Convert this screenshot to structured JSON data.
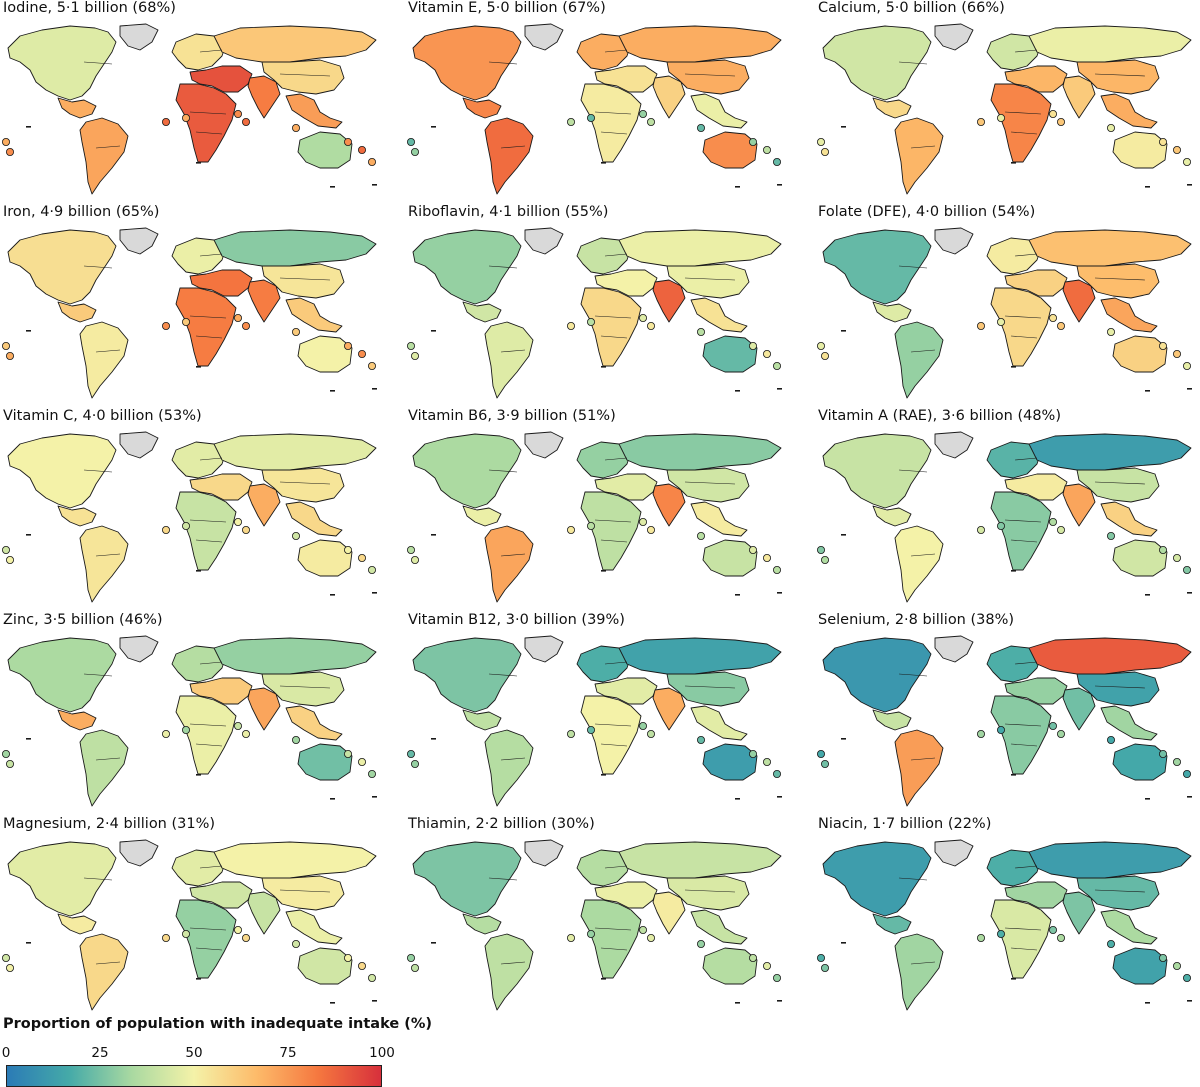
{
  "panels": [
    {
      "title": "Iodine, 5·1 billion (68%)",
      "regions": {
        "na": 45,
        "greenland": null,
        "ca": 70,
        "sa": 72,
        "eu": 55,
        "russia": 63,
        "ma": 92,
        "af": 90,
        "sas": 82,
        "eas": 58,
        "sea": 74,
        "oc": 35,
        "islands": 78
      }
    },
    {
      "title": "Vitamin E, 5·0 billion (67%)",
      "regions": {
        "na": 76,
        "greenland": null,
        "ca": 80,
        "sa": 86,
        "eu": 70,
        "russia": 70,
        "ma": 55,
        "af": 52,
        "sas": 60,
        "eas": 70,
        "sea": 48,
        "oc": 78,
        "islands": 30
      }
    },
    {
      "title": "Calcium, 5·0 billion (66%)",
      "regions": {
        "na": 42,
        "greenland": null,
        "ca": 58,
        "sa": 68,
        "eu": 42,
        "russia": 48,
        "ma": 68,
        "af": 80,
        "sas": 62,
        "eas": 68,
        "sea": 70,
        "oc": 52,
        "islands": 55
      }
    },
    {
      "title": "Iron, 4·9 billion (65%)",
      "regions": {
        "na": 56,
        "greenland": null,
        "ca": 62,
        "sa": 52,
        "eu": 48,
        "russia": 28,
        "ma": 84,
        "af": 82,
        "sas": 82,
        "eas": 54,
        "sea": 62,
        "oc": 50,
        "islands": 70
      }
    },
    {
      "title": "Riboflavin, 4·1 billion (55%)",
      "regions": {
        "na": 30,
        "greenland": null,
        "ca": 42,
        "sa": 45,
        "eu": 40,
        "russia": 48,
        "ma": 50,
        "af": 58,
        "sas": 88,
        "eas": 48,
        "sea": 55,
        "oc": 22,
        "islands": 45
      }
    },
    {
      "title": "Folate (DFE), 4·0 billion (54%)",
      "regions": {
        "na": 22,
        "greenland": null,
        "ca": 45,
        "sa": 30,
        "eu": 52,
        "russia": 65,
        "ma": 60,
        "af": 58,
        "sas": 86,
        "eas": 66,
        "sea": 72,
        "oc": 60,
        "islands": 55
      }
    },
    {
      "title": "Vitamin C, 4·0 billion (53%)",
      "regions": {
        "na": 50,
        "greenland": null,
        "ca": 55,
        "sa": 54,
        "eu": 46,
        "russia": 46,
        "ma": 58,
        "af": 40,
        "sas": 70,
        "eas": 54,
        "sea": 58,
        "oc": 52,
        "islands": 50
      }
    },
    {
      "title": "Vitamin B6, 3·9 billion (51%)",
      "regions": {
        "na": 34,
        "greenland": null,
        "ca": 48,
        "sa": 72,
        "eu": 30,
        "russia": 28,
        "ma": 46,
        "af": 38,
        "sas": 80,
        "eas": 42,
        "sea": 52,
        "oc": 40,
        "islands": 45
      }
    },
    {
      "title": "Vitamin A (RAE), 3·6 billion (48%)",
      "regions": {
        "na": 40,
        "greenland": null,
        "ca": 46,
        "sa": 50,
        "eu": 20,
        "russia": 12,
        "ma": 52,
        "af": 28,
        "sas": 72,
        "eas": 40,
        "sea": 60,
        "oc": 42,
        "islands": 35
      }
    },
    {
      "title": "Zinc, 3·5 billion (46%)",
      "regions": {
        "na": 34,
        "greenland": null,
        "ca": 70,
        "sa": 38,
        "eu": 36,
        "russia": 30,
        "ma": 62,
        "af": 48,
        "sas": 72,
        "eas": 44,
        "sea": 60,
        "oc": 24,
        "islands": 40
      }
    },
    {
      "title": "Vitamin B12, 3·0 billion (39%)",
      "regions": {
        "na": 26,
        "greenland": null,
        "ca": 38,
        "sa": 36,
        "eu": 18,
        "russia": 14,
        "ma": 46,
        "af": 50,
        "sas": 70,
        "eas": 28,
        "sea": 46,
        "oc": 12,
        "islands": 30
      }
    },
    {
      "title": "Selenium, 2·8 billion (38%)",
      "regions": {
        "na": 10,
        "greenland": null,
        "ca": 40,
        "sa": 74,
        "eu": 18,
        "russia": 90,
        "ma": 30,
        "af": 28,
        "sas": 24,
        "eas": 14,
        "sea": 32,
        "oc": 16,
        "islands": 24
      }
    },
    {
      "title": "Magnesium, 2·4 billion (31%)",
      "regions": {
        "na": 46,
        "greenland": null,
        "ca": 52,
        "sa": 58,
        "eu": 46,
        "russia": 50,
        "ma": 42,
        "af": 30,
        "sas": 40,
        "eas": 52,
        "sea": 48,
        "oc": 42,
        "islands": 50
      }
    },
    {
      "title": "Thiamin, 2·2 billion (30%)",
      "regions": {
        "na": 26,
        "greenland": null,
        "ca": 36,
        "sa": 38,
        "eu": 36,
        "russia": 40,
        "ma": 48,
        "af": 34,
        "sas": 52,
        "eas": 44,
        "sea": 40,
        "oc": 36,
        "islands": 38
      }
    },
    {
      "title": "Niacin, 1·7 billion (22%)",
      "regions": {
        "na": 12,
        "greenland": null,
        "ca": 22,
        "sa": 32,
        "eu": 18,
        "russia": 12,
        "ma": 32,
        "af": 44,
        "sas": 26,
        "eas": 22,
        "sea": 34,
        "oc": 14,
        "islands": 26
      }
    }
  ],
  "legend": {
    "title": "Proportion of population with inadequate intake (%)",
    "ticks": [
      "0",
      "25",
      "50",
      "75",
      "100"
    ],
    "range": [
      0,
      100
    ],
    "colors": [
      "#2b7bb6",
      "#45aaa8",
      "#a9d9a1",
      "#f4f2a8",
      "#fdbb6a",
      "#f5773f",
      "#d7303c"
    ],
    "no_data_color": "#d9d9d9"
  }
}
